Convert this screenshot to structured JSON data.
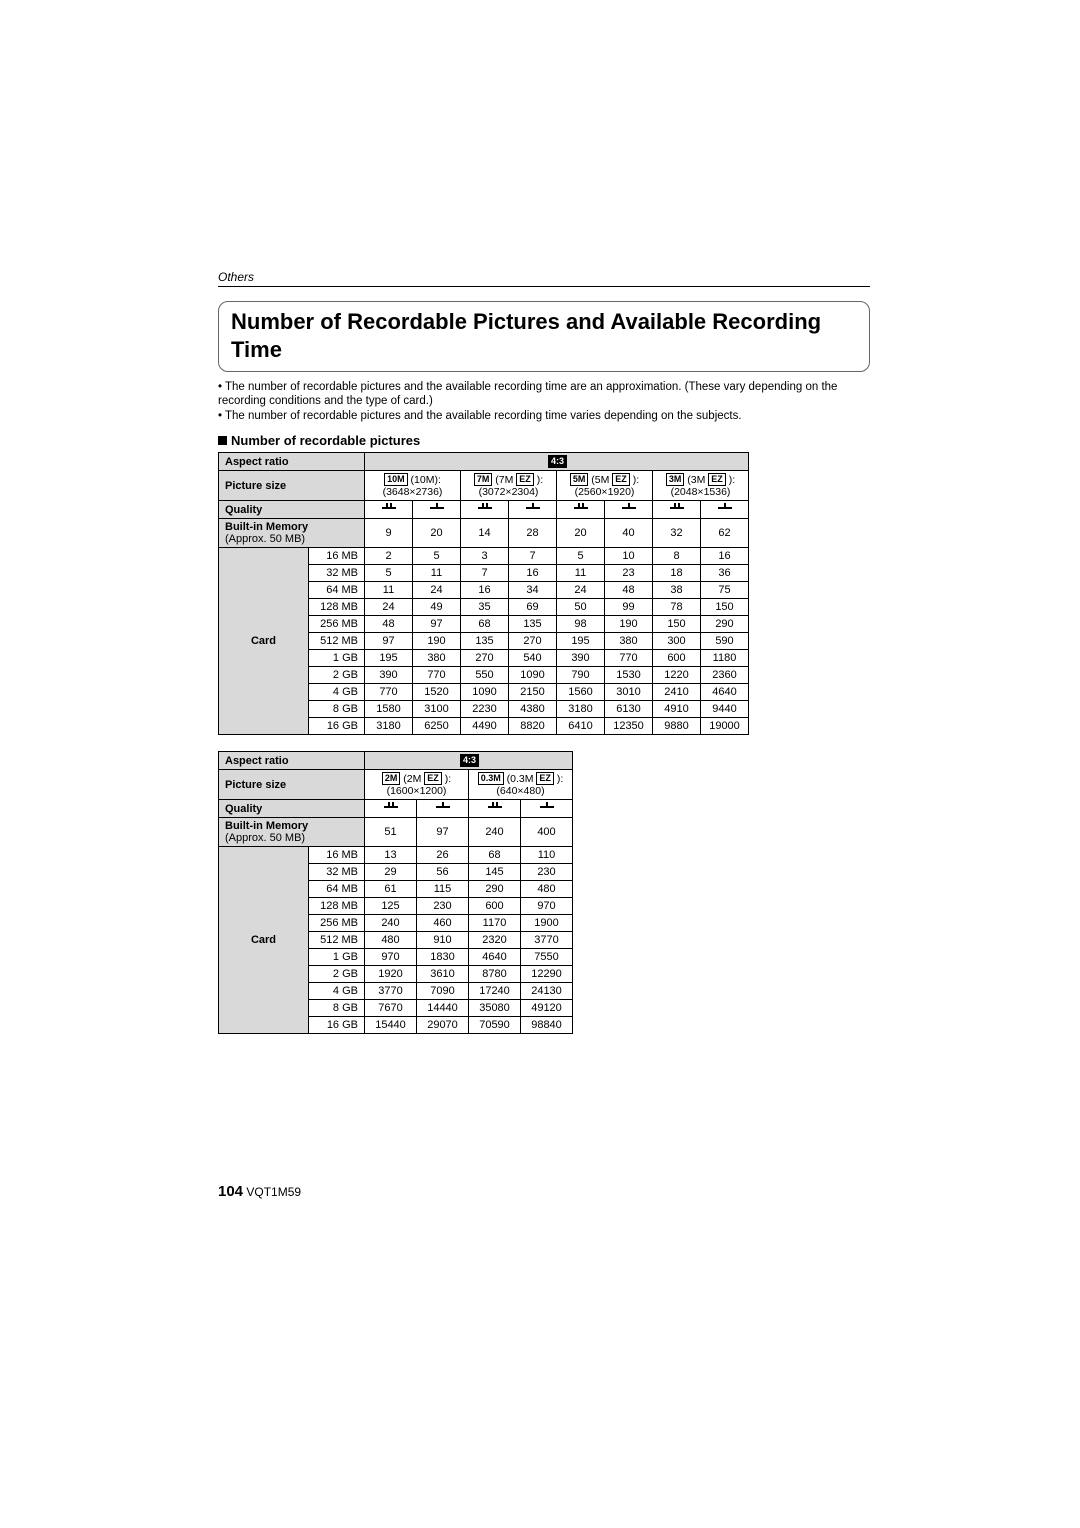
{
  "section_label": "Others",
  "title": "Number of Recordable Pictures and Available Recording Time",
  "bullet1": "• The number of recordable pictures and the available recording time are an approximation. (These vary depending on the recording conditions and the type of card.)",
  "bullet2": "• The number of recordable pictures and the available recording time varies depending on the subjects.",
  "subhead": "Number of recordable pictures",
  "labels": {
    "aspect": "Aspect ratio",
    "psize": "Picture size",
    "quality": "Quality",
    "builtin": "Built-in Memory",
    "builtin_sub": "(Approx. 50 MB)",
    "card": "Card",
    "ratio43": "4:3"
  },
  "table1": {
    "sizes": [
      {
        "badge": "10M",
        "label": "(10M):",
        "res": "(3648×2736)"
      },
      {
        "badge": "7M",
        "label": "(7M",
        "ez": true,
        "res": "(3072×2304)"
      },
      {
        "badge": "5M",
        "label": "(5M",
        "ez": true,
        "res": "(2560×1920)"
      },
      {
        "badge": "3M",
        "label": "(3M",
        "ez": true,
        "res": "(2048×1536)"
      }
    ],
    "builtin": [
      9,
      20,
      14,
      28,
      20,
      40,
      32,
      62
    ],
    "card_sizes": [
      "16 MB",
      "32 MB",
      "64 MB",
      "128 MB",
      "256 MB",
      "512 MB",
      "1 GB",
      "2 GB",
      "4 GB",
      "8 GB",
      "16 GB"
    ],
    "card_vals": [
      [
        2,
        5,
        3,
        7,
        5,
        10,
        8,
        16
      ],
      [
        5,
        11,
        7,
        16,
        11,
        23,
        18,
        36
      ],
      [
        11,
        24,
        16,
        34,
        24,
        48,
        38,
        75
      ],
      [
        24,
        49,
        35,
        69,
        50,
        99,
        78,
        150
      ],
      [
        48,
        97,
        68,
        135,
        98,
        190,
        150,
        290
      ],
      [
        97,
        190,
        135,
        270,
        195,
        380,
        300,
        590
      ],
      [
        195,
        380,
        270,
        540,
        390,
        770,
        600,
        1180
      ],
      [
        390,
        770,
        550,
        1090,
        790,
        1530,
        1220,
        2360
      ],
      [
        770,
        1520,
        1090,
        2150,
        1560,
        3010,
        2410,
        4640
      ],
      [
        1580,
        3100,
        2230,
        4380,
        3180,
        6130,
        4910,
        9440
      ],
      [
        3180,
        6250,
        4490,
        8820,
        6410,
        12350,
        9880,
        19000
      ]
    ],
    "col_label_w": 90,
    "col_size_w": 56,
    "col_data_w": 48
  },
  "table2": {
    "sizes": [
      {
        "badge": "2M",
        "label": "(2M",
        "ez": true,
        "res": "(1600×1200)"
      },
      {
        "badge": "0.3M",
        "label": "(0.3M",
        "ez": true,
        "res": "(640×480)"
      }
    ],
    "builtin": [
      51,
      97,
      240,
      400
    ],
    "card_sizes": [
      "16 MB",
      "32 MB",
      "64 MB",
      "128 MB",
      "256 MB",
      "512 MB",
      "1 GB",
      "2 GB",
      "4 GB",
      "8 GB",
      "16 GB"
    ],
    "card_vals": [
      [
        13,
        26,
        68,
        110
      ],
      [
        29,
        56,
        145,
        230
      ],
      [
        61,
        115,
        290,
        480
      ],
      [
        125,
        230,
        600,
        970
      ],
      [
        240,
        460,
        1170,
        1900
      ],
      [
        480,
        910,
        2320,
        3770
      ],
      [
        970,
        1830,
        4640,
        7550
      ],
      [
        1920,
        3610,
        8780,
        12290
      ],
      [
        3770,
        7090,
        17240,
        24130
      ],
      [
        7670,
        14440,
        35080,
        49120
      ],
      [
        15440,
        29070,
        70590,
        98840
      ]
    ],
    "col_label_w": 90,
    "col_size_w": 56,
    "col_data_w": 52
  },
  "footer": {
    "page": "104",
    "code": "VQT1M59"
  }
}
